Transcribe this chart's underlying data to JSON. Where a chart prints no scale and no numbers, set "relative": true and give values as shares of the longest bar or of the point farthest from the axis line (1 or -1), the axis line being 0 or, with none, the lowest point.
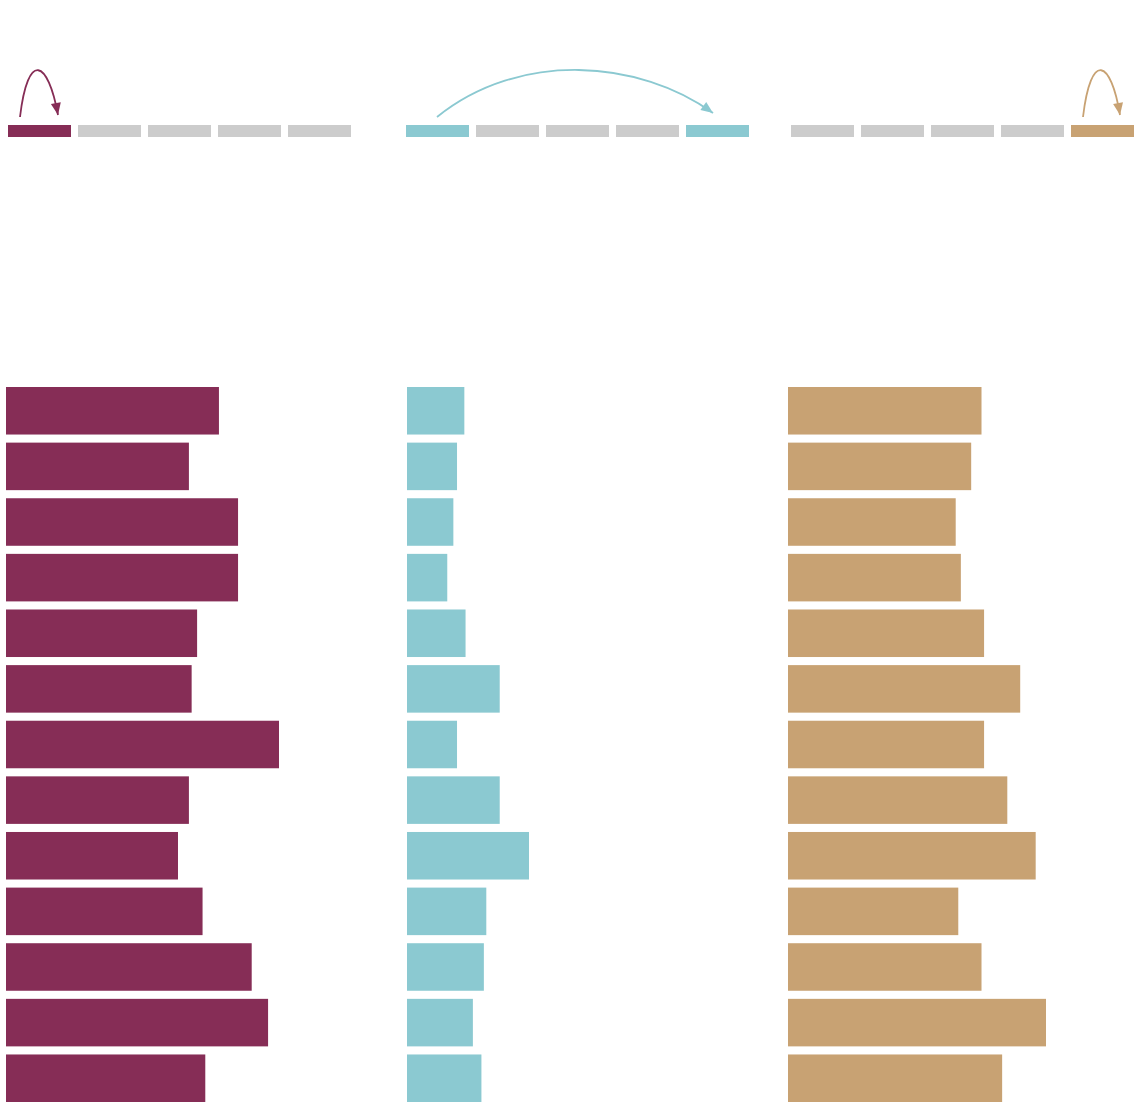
{
  "chart_data": [
    {
      "type": "bar",
      "orientation": "horizontal",
      "relative": true,
      "tick_labels": false,
      "color": "#862d56",
      "categories": [
        null,
        null,
        null,
        null,
        null,
        null,
        null,
        null,
        null,
        null,
        null,
        null,
        null
      ],
      "values": [
        0.78,
        0.67,
        0.85,
        0.85,
        0.7,
        0.68,
        1,
        0.67,
        0.63,
        0.72,
        0.9,
        0.96,
        0.73
      ]
    },
    {
      "type": "bar",
      "orientation": "horizontal",
      "relative": true,
      "tick_labels": false,
      "color": "#8bc9d1",
      "categories": [
        null,
        null,
        null,
        null,
        null,
        null,
        null,
        null,
        null,
        null,
        null,
        null,
        null
      ],
      "values": [
        0.47,
        0.41,
        0.38,
        0.33,
        0.48,
        0.76,
        0.41,
        0.76,
        1,
        0.65,
        0.63,
        0.54,
        0.61
      ]
    },
    {
      "type": "bar",
      "orientation": "horizontal",
      "relative": true,
      "tick_labels": false,
      "color": "#c8a273",
      "categories": [
        null,
        null,
        null,
        null,
        null,
        null,
        null,
        null,
        null,
        null,
        null,
        null,
        null
      ],
      "values": [
        0.75,
        0.71,
        0.65,
        0.67,
        0.76,
        0.9,
        0.76,
        0.85,
        0.96,
        0.66,
        0.75,
        1,
        0.83
      ]
    }
  ]
}
